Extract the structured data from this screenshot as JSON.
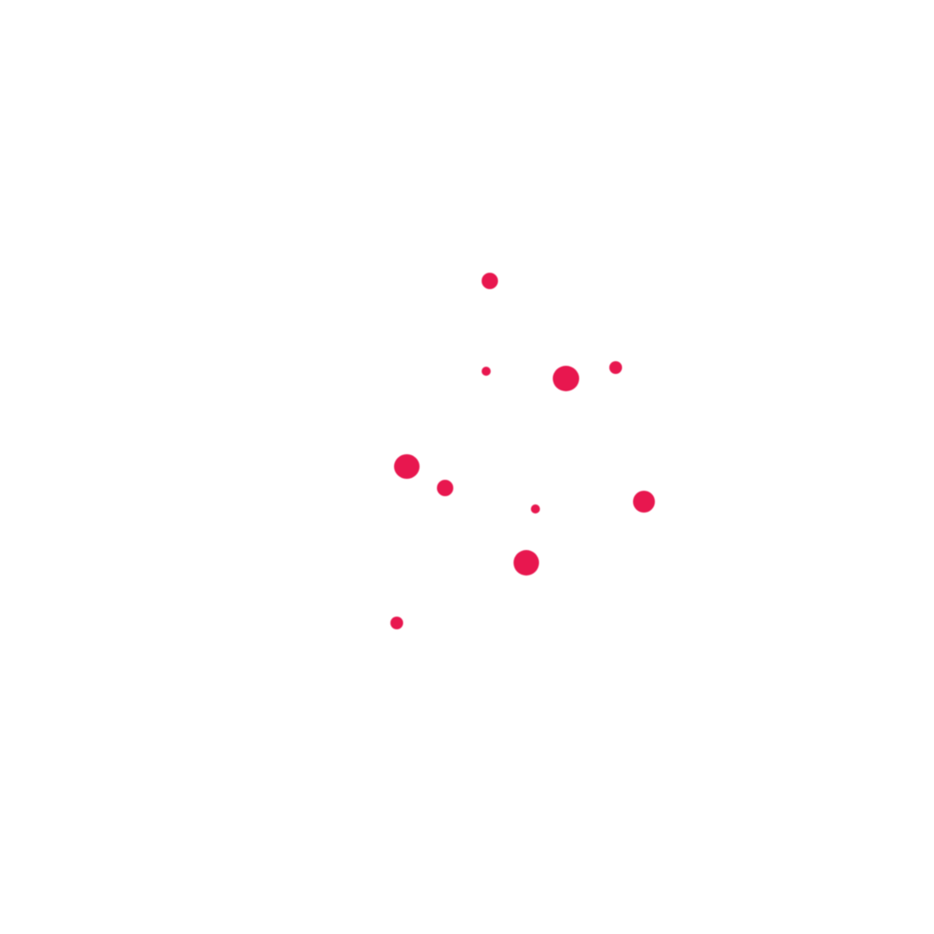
{
  "dot_color": "#e8174f",
  "shape": "blob"
}
